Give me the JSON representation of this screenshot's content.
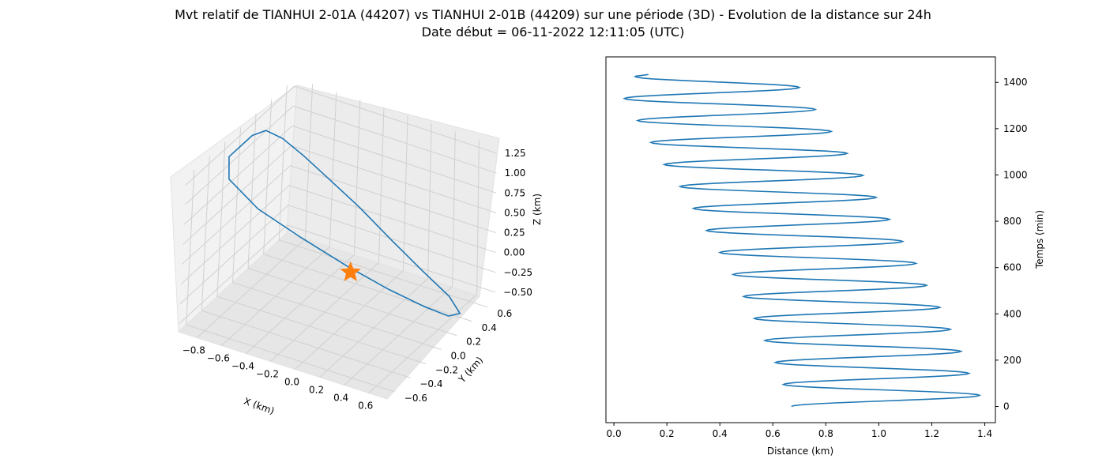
{
  "title_line1": "Mvt relatif de TIANHUI 2-01A (44207) vs TIANHUI 2-01B (44209) sur une période (3D) - Evolution de la distance sur 24h",
  "title_line2": "Date début = 06-11-2022 12:11:05 (UTC)",
  "colors": {
    "series": "#1f77b4",
    "marker": "#ff7f0e",
    "pane": "#f2f2f2",
    "grid": "#d0d0d0"
  },
  "chart_data": [
    {
      "type": "line3d",
      "xlabel": "X (km)",
      "ylabel": "Y (km)",
      "zlabel": "Z (km)",
      "x_ticks": [
        "−0.8",
        "−0.6",
        "−0.4",
        "−0.2",
        "0.0",
        "0.2",
        "0.4",
        "0.6"
      ],
      "y_ticks": [
        "−0.6",
        "−0.4",
        "−0.2",
        "0.0",
        "0.2",
        "0.4",
        "0.6"
      ],
      "z_ticks": [
        "−0.50",
        "−0.25",
        "0.00",
        "0.25",
        "0.50",
        "0.75",
        "1.00",
        "1.25"
      ],
      "xlim": [
        -0.95,
        0.75
      ],
      "ylim": [
        -0.7,
        0.7
      ],
      "zlim": [
        -0.6,
        1.35
      ],
      "grid": true,
      "series": [
        {
          "points": [
            [
              -0.85,
              0.0,
              1.3
            ],
            [
              -0.8,
              0.1,
              1.3
            ],
            [
              -0.72,
              0.2,
              1.15
            ],
            [
              -0.6,
              0.3,
              0.9
            ],
            [
              -0.45,
              0.4,
              0.6
            ],
            [
              -0.25,
              0.5,
              0.25
            ],
            [
              0.0,
              0.55,
              -0.1
            ],
            [
              0.25,
              0.55,
              -0.35
            ],
            [
              0.5,
              0.5,
              -0.5
            ],
            [
              0.65,
              0.4,
              -0.55
            ],
            [
              0.65,
              0.25,
              -0.45
            ],
            [
              0.55,
              0.1,
              -0.25
            ],
            [
              0.35,
              -0.05,
              0.0
            ],
            [
              0.1,
              -0.2,
              0.3
            ],
            [
              -0.2,
              -0.35,
              0.65
            ],
            [
              -0.5,
              -0.45,
              0.95
            ],
            [
              -0.75,
              -0.45,
              1.2
            ],
            [
              -0.85,
              -0.3,
              1.3
            ],
            [
              -0.85,
              0.0,
              1.3
            ]
          ]
        }
      ],
      "marker": {
        "symbol": "star",
        "x": 0.0,
        "y": 0.0,
        "z": 0.0
      }
    },
    {
      "type": "line",
      "xlabel": "Distance (km)",
      "ylabel": "Temps (min)",
      "xlim": [
        -0.03,
        1.44
      ],
      "ylim": [
        -70,
        1510
      ],
      "x_ticks": [
        0.0,
        0.2,
        0.4,
        0.6,
        0.8,
        1.0,
        1.2,
        1.4
      ],
      "y_ticks": [
        0,
        200,
        400,
        600,
        800,
        1000,
        1200,
        1400
      ],
      "grid": false,
      "series": [
        {
          "t": [
            0,
            48,
            95,
            143,
            190,
            238,
            285,
            333,
            380,
            428,
            475,
            523,
            570,
            618,
            665,
            713,
            760,
            808,
            855,
            903,
            950,
            998,
            1045,
            1093,
            1140,
            1188,
            1235,
            1283,
            1330,
            1378,
            1425,
            1435
          ],
          "d": [
            0.67,
            1.38,
            0.64,
            1.34,
            0.61,
            1.31,
            0.57,
            1.27,
            0.53,
            1.23,
            0.49,
            1.18,
            0.45,
            1.14,
            0.4,
            1.09,
            0.35,
            1.04,
            0.3,
            0.99,
            0.25,
            0.94,
            0.19,
            0.88,
            0.14,
            0.82,
            0.09,
            0.76,
            0.04,
            0.7,
            0.08,
            0.13
          ]
        }
      ]
    }
  ]
}
